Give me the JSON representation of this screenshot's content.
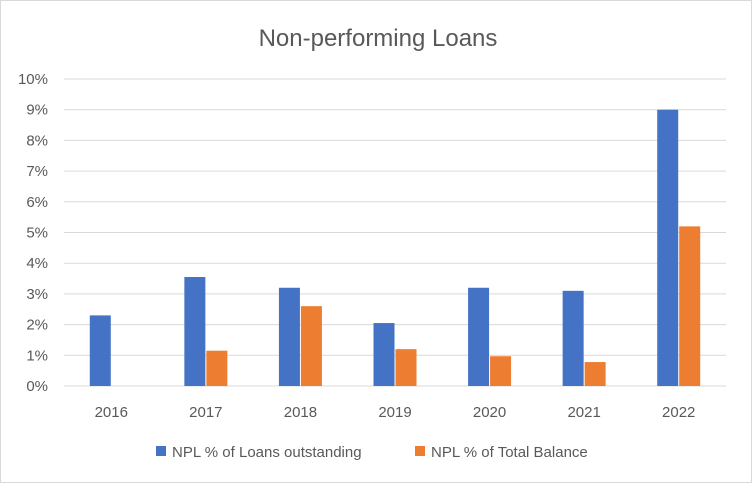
{
  "chart_data": {
    "type": "bar",
    "title": "Non-performing Loans",
    "xlabel": "",
    "ylabel": "",
    "categories": [
      "2016",
      "2017",
      "2018",
      "2019",
      "2020",
      "2021",
      "2022"
    ],
    "series": [
      {
        "name": "NPL % of Loans outstanding",
        "color": "#4472c4",
        "values": [
          2.3,
          3.55,
          3.2,
          2.05,
          3.2,
          3.1,
          9.0
        ]
      },
      {
        "name": "NPL % of Total Balance",
        "color": "#ed7d31",
        "values": [
          null,
          1.15,
          2.6,
          1.2,
          0.97,
          0.78,
          5.2
        ]
      }
    ],
    "ylim": [
      0,
      10
    ],
    "yticks": [
      "0%",
      "1%",
      "2%",
      "3%",
      "4%",
      "5%",
      "6%",
      "7%",
      "8%",
      "9%",
      "10%"
    ],
    "grid": true,
    "legend_position": "bottom"
  }
}
